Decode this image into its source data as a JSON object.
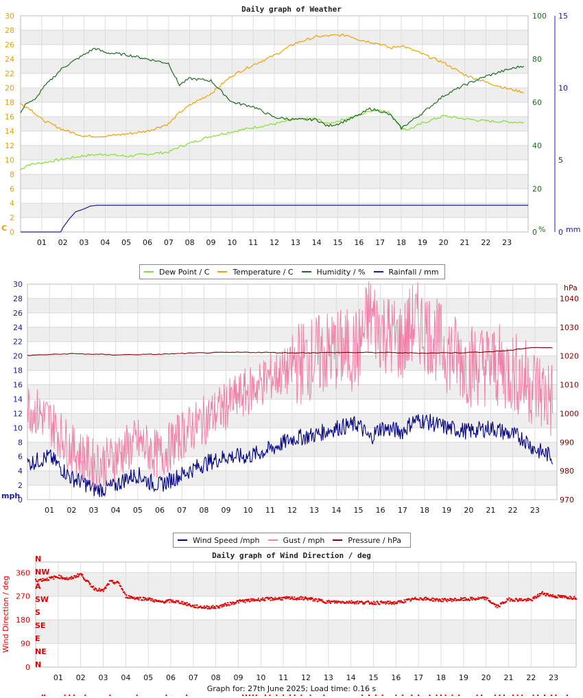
{
  "chart_data": [
    {
      "id": "weather",
      "type": "line",
      "title": "Daily graph of Weather",
      "x_hours": [
        0,
        24
      ],
      "x_tick_labels": [
        "01",
        "02",
        "03",
        "04",
        "05",
        "06",
        "07",
        "08",
        "09",
        "10",
        "11",
        "12",
        "13",
        "14",
        "15",
        "16",
        "17",
        "18",
        "19",
        "20",
        "21",
        "22",
        "23"
      ],
      "left_axis": {
        "unit": "C",
        "ylim": [
          0,
          30
        ],
        "ticks": [
          0,
          2,
          4,
          6,
          8,
          10,
          12,
          14,
          16,
          18,
          20,
          22,
          24,
          26,
          28,
          30
        ],
        "color": "#e8a000"
      },
      "right_axis_1": {
        "unit": "%",
        "ylim": [
          0,
          100
        ],
        "ticks": [
          0,
          20,
          40,
          60,
          80,
          100
        ],
        "color": "#1e6b1e"
      },
      "right_axis_2": {
        "unit": "mm",
        "ylim": [
          0,
          15
        ],
        "ticks": [
          0,
          5,
          10,
          15
        ],
        "color": "#1a1aa0"
      },
      "grid": true,
      "legend_position": "bottom-center",
      "series": [
        {
          "name": "Dew Point / C",
          "axis": "left",
          "color": "#80e030",
          "x": [
            0,
            0.3,
            1,
            2,
            3,
            4,
            5,
            6,
            7,
            7.5,
            8,
            9,
            10,
            11,
            12,
            13,
            14,
            14.5,
            15,
            16,
            16.5,
            17,
            17.5,
            18,
            18.3,
            18.5,
            19,
            20,
            21,
            22,
            23,
            23.8
          ],
          "y": [
            8.6,
            9.3,
            9.6,
            10.1,
            10.6,
            10.8,
            10.5,
            10.8,
            11.1,
            11.8,
            12.3,
            13.3,
            13.9,
            14.5,
            15.0,
            15.6,
            15.7,
            15.0,
            15.4,
            16.2,
            16.8,
            17.0,
            16.4,
            14.5,
            14.2,
            14.4,
            15.1,
            16.1,
            15.7,
            15.4,
            15.3,
            15.2
          ]
        },
        {
          "name": "Temperature / C",
          "axis": "left",
          "color": "#f0a000",
          "x": [
            0,
            0.5,
            1,
            2,
            3,
            4,
            5,
            6,
            7,
            7.5,
            8,
            9,
            10,
            11,
            12,
            13,
            14,
            15,
            15.5,
            16,
            17,
            17.5,
            18,
            19,
            20,
            21,
            22,
            23,
            23.8
          ],
          "y": [
            17.8,
            17.0,
            15.6,
            14.2,
            13.3,
            13.3,
            13.6,
            14.0,
            15.0,
            16.5,
            17.6,
            19.2,
            21.7,
            23.2,
            24.5,
            26.2,
            27.1,
            27.3,
            27.3,
            26.7,
            26.1,
            25.5,
            25.9,
            24.7,
            23.5,
            21.8,
            20.8,
            19.9,
            19.4
          ]
        },
        {
          "name": "Humidity / %",
          "axis": "right1",
          "color": "#1e6b1e",
          "x": [
            0,
            0.3,
            0.7,
            1,
            2,
            3,
            3.5,
            4,
            5,
            6,
            7,
            7.5,
            8,
            9,
            9.5,
            10,
            11,
            12,
            13,
            14,
            14.5,
            15,
            16,
            16.5,
            17,
            17.5,
            18,
            19,
            20,
            21,
            22,
            23,
            23.8
          ],
          "y": [
            55,
            60,
            61,
            66,
            76,
            82,
            85,
            83,
            82,
            80,
            78,
            68,
            71,
            70,
            65,
            60,
            58,
            53,
            52,
            52,
            49,
            50,
            54,
            57,
            56,
            54,
            48,
            55,
            63,
            68,
            72,
            75,
            77
          ]
        },
        {
          "name": "Rainfall / mm",
          "axis": "right2",
          "color": "#1a1aa0",
          "x": [
            0,
            1.9,
            2,
            2.3,
            2.6,
            3,
            3.3,
            3.6,
            24
          ],
          "y": [
            0,
            0,
            0.3,
            0.9,
            1.4,
            1.6,
            1.8,
            1.85,
            1.85
          ]
        }
      ]
    },
    {
      "id": "wind",
      "type": "line",
      "title": "",
      "x_hours": [
        0,
        24
      ],
      "x_tick_labels": [
        "01",
        "02",
        "03",
        "04",
        "05",
        "06",
        "07",
        "08",
        "09",
        "10",
        "11",
        "12",
        "13",
        "14",
        "15",
        "16",
        "17",
        "18",
        "19",
        "20",
        "21",
        "22",
        "23"
      ],
      "left_axis": {
        "unit": "mph",
        "ylim": [
          0,
          30
        ],
        "ticks": [
          0,
          2,
          4,
          6,
          8,
          10,
          12,
          14,
          16,
          18,
          20,
          22,
          24,
          26,
          28,
          30
        ],
        "color": "#1a1aa0"
      },
      "right_axis": {
        "unit": "hPa",
        "ylim": [
          970,
          1045
        ],
        "ticks": [
          970,
          980,
          990,
          1000,
          1010,
          1020,
          1030,
          1040
        ],
        "color": "#800000"
      },
      "grid": true,
      "legend_position": "bottom-center",
      "series": [
        {
          "name": "Wind Speed /mph",
          "axis": "left",
          "color": "#000080",
          "x": [
            0,
            1,
            2,
            2.5,
            3,
            3.5,
            4,
            4.5,
            5,
            5.5,
            6,
            7,
            8,
            9,
            10,
            11,
            12,
            13,
            14,
            15,
            15.5,
            16,
            17,
            17.5,
            18,
            19,
            20,
            21,
            22,
            22.5,
            23,
            23.8
          ],
          "y": [
            5,
            6,
            3,
            2.5,
            1.5,
            1.5,
            2,
            3,
            3.5,
            2.5,
            2,
            3.5,
            5,
            6,
            6,
            7,
            8.5,
            9,
            10,
            10.5,
            8.5,
            10,
            9.5,
            11,
            11,
            10,
            9.5,
            10,
            9,
            8.5,
            7,
            6
          ]
        },
        {
          "name": "Gust / mph",
          "axis": "left",
          "color": "#f080a8",
          "x": [
            0,
            1,
            2,
            2.5,
            3,
            3.5,
            4,
            4.5,
            5,
            5.5,
            6,
            7,
            8,
            9,
            10,
            11,
            12,
            13,
            14,
            15,
            15.5,
            16,
            17,
            17.5,
            18,
            19,
            20,
            21,
            22,
            22.5,
            23,
            23.8
          ],
          "y": [
            12,
            10,
            6,
            5,
            4,
            4,
            5,
            6,
            7,
            6,
            5,
            8,
            10,
            12,
            14,
            16,
            17,
            18,
            19,
            19,
            24,
            22,
            20,
            23,
            22,
            19,
            17,
            17,
            16,
            15,
            14,
            12
          ]
        },
        {
          "name": "Pressure / hPa",
          "axis": "right",
          "color": "#800000",
          "x": [
            0,
            2,
            4,
            6,
            8,
            10,
            12,
            14,
            16,
            18,
            20,
            21,
            22,
            22.5,
            23,
            23.8
          ],
          "y": [
            1020.2,
            1020.8,
            1020.4,
            1020.6,
            1021.1,
            1021.3,
            1021.1,
            1021.2,
            1021.2,
            1021.0,
            1021.2,
            1021.5,
            1022.0,
            1022.7,
            1023.0,
            1022.8
          ]
        }
      ]
    },
    {
      "id": "wind-direction",
      "type": "scatter",
      "title": "Daily graph of Wind Direction / deg",
      "x_hours": [
        0,
        24
      ],
      "x_tick_labels": [
        "01",
        "02",
        "03",
        "04",
        "05",
        "06",
        "07",
        "08",
        "09",
        "10",
        "11",
        "12",
        "13",
        "14",
        "15",
        "16",
        "17",
        "18",
        "19",
        "20",
        "21",
        "22",
        "23"
      ],
      "ylabel": "Wind Direction / deg",
      "ylim": [
        0,
        400
      ],
      "y_ticks": [
        0,
        90,
        180,
        270,
        360
      ],
      "compass_labels": [
        "N",
        "NE",
        "E",
        "SE",
        "S",
        "SW",
        "A",
        "NW",
        "N"
      ],
      "grid": true,
      "color": "#e00000",
      "series": [
        {
          "name": "",
          "x": [
            0,
            0.5,
            1,
            1.5,
            2,
            2.3,
            2.6,
            3,
            3.3,
            3.7,
            4,
            4.5,
            5,
            5.5,
            6,
            6.5,
            7,
            7.5,
            8,
            9,
            10,
            11,
            12,
            13,
            14,
            15,
            16,
            17,
            18,
            19,
            20,
            20.5,
            21,
            22,
            22.5,
            23,
            23.8
          ],
          "y": [
            330,
            335,
            345,
            335,
            355,
            325,
            300,
            290,
            325,
            320,
            270,
            262,
            260,
            248,
            252,
            246,
            232,
            228,
            228,
            250,
            258,
            262,
            262,
            248,
            248,
            245,
            245,
            262,
            255,
            258,
            262,
            230,
            258,
            255,
            282,
            270,
            265
          ]
        }
      ],
      "rug_hours": [
        0.3,
        0.4,
        1.3,
        1.5,
        1.7,
        2.2,
        3.3,
        4.5,
        5.8,
        6.7,
        9.2,
        9.35,
        9.5,
        9.65,
        9.8,
        10.2,
        10.4,
        10.7,
        11.0,
        11.3,
        11.5,
        11.8,
        12.2,
        12.8,
        14.5,
        14.8,
        15.1,
        15.4,
        16.0,
        16.3,
        16.7,
        17.0,
        17.5,
        17.8,
        18.0,
        18.2,
        18.5,
        18.8,
        19.6,
        19.8,
        20.4,
        20.6,
        20.8,
        21.2,
        21.4,
        21.6,
        22.1,
        22.3,
        22.6,
        22.9,
        23.1,
        23.6
      ]
    }
  ],
  "legends": {
    "weather": [
      "Dew Point / C",
      "Temperature / C",
      "Humidity / %",
      "Rainfall / mm"
    ],
    "wind": [
      "Wind Speed /mph",
      "Gust / mph",
      "Pressure / hPa"
    ]
  },
  "footer": "Graph for: 27th June 2025; Load time: 0.16 s"
}
